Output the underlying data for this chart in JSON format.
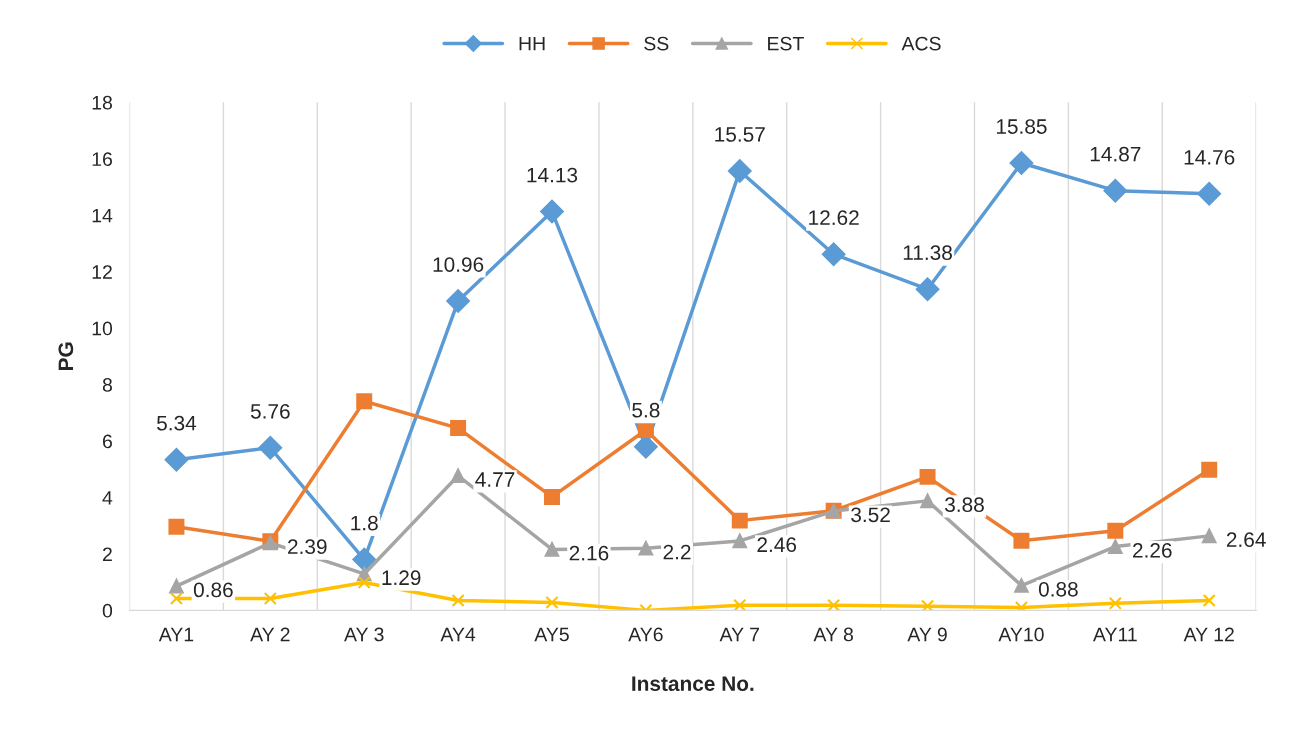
{
  "chart_data": {
    "type": "line",
    "xlabel": "Instance No.",
    "ylabel": "PG",
    "categories": [
      "AY1",
      "AY 2",
      "AY 3",
      "AY4",
      "AY5",
      "AY6",
      "AY 7",
      "AY 8",
      "AY 9",
      "AY10",
      "AY11",
      "AY 12"
    ],
    "series": [
      {
        "name": "HH",
        "color": "#5b9bd5",
        "marker": "diamond",
        "values": [
          5.34,
          5.76,
          1.8,
          10.96,
          14.13,
          5.8,
          15.57,
          12.62,
          11.38,
          15.85,
          14.87,
          14.76
        ],
        "value_labels": [
          "5.34",
          "5.76",
          "1.8",
          "10.96",
          "14.13",
          "5.8",
          "15.57",
          "12.62",
          "11.38",
          "15.85",
          "14.87",
          "14.76"
        ]
      },
      {
        "name": "SS",
        "color": "#ed7d31",
        "marker": "square",
        "values": [
          2.96,
          2.45,
          7.41,
          6.46,
          4.02,
          6.39,
          3.18,
          3.53,
          4.73,
          2.47,
          2.82,
          4.98
        ]
      },
      {
        "name": "EST",
        "color": "#a5a5a5",
        "marker": "triangle",
        "values": [
          0.86,
          2.39,
          1.29,
          4.77,
          2.16,
          2.2,
          2.46,
          3.52,
          3.88,
          0.88,
          2.26,
          2.64
        ],
        "value_labels": [
          "0.86",
          "2.39",
          "1.29",
          "4.77",
          "2.16",
          "2.2",
          "2.46",
          "3.52",
          "3.88",
          "0.88",
          "2.26",
          "2.64"
        ]
      },
      {
        "name": "ACS",
        "color": "#ffc000",
        "marker": "cross",
        "values": [
          0.42,
          0.42,
          0.99,
          0.35,
          0.28,
          0.0,
          0.18,
          0.18,
          0.15,
          0.1,
          0.25,
          0.35
        ]
      }
    ],
    "ylim": [
      0,
      18
    ],
    "yticks": [
      0,
      2,
      4,
      6,
      8,
      10,
      12,
      14,
      16,
      18
    ],
    "grid": "x",
    "legend": "top"
  }
}
